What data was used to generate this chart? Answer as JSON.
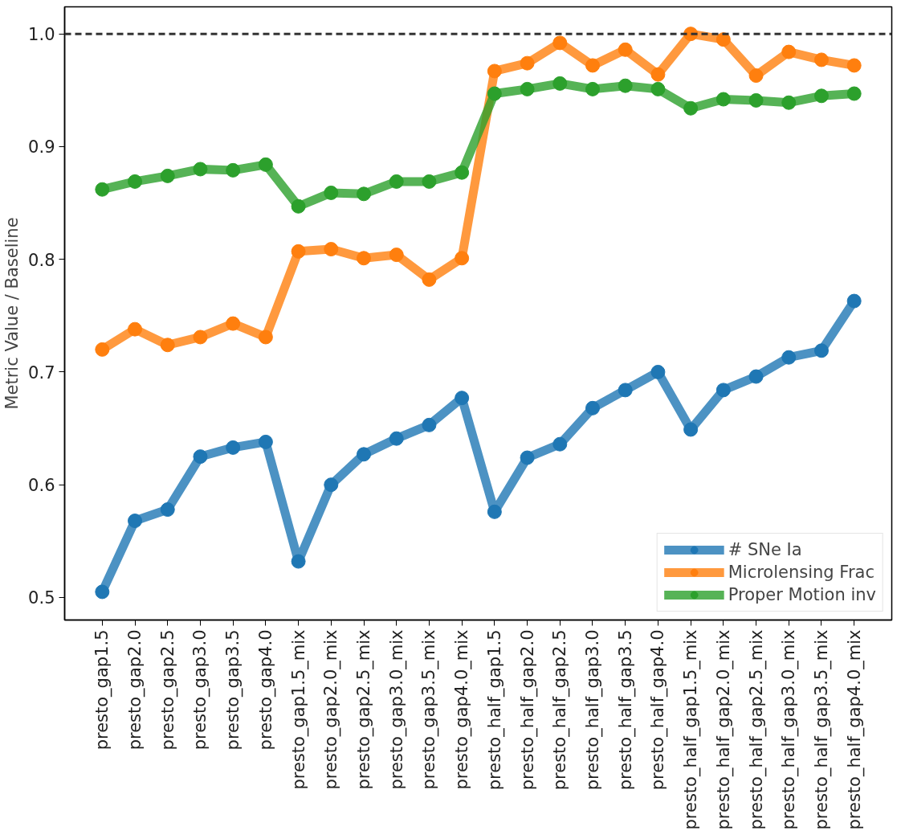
{
  "chart_data": {
    "type": "line",
    "ylabel": "Metric Value / Baseline",
    "categories": [
      "presto_gap1.5",
      "presto_gap2.0",
      "presto_gap2.5",
      "presto_gap3.0",
      "presto_gap3.5",
      "presto_gap4.0",
      "presto_gap1.5_mix",
      "presto_gap2.0_mix",
      "presto_gap2.5_mix",
      "presto_gap3.0_mix",
      "presto_gap3.5_mix",
      "presto_gap4.0_mix",
      "presto_half_gap1.5",
      "presto_half_gap2.0",
      "presto_half_gap2.5",
      "presto_half_gap3.0",
      "presto_half_gap3.5",
      "presto_half_gap4.0",
      "presto_half_gap1.5_mix",
      "presto_half_gap2.0_mix",
      "presto_half_gap2.5_mix",
      "presto_half_gap3.0_mix",
      "presto_half_gap3.5_mix",
      "presto_half_gap4.0_mix"
    ],
    "series": [
      {
        "name": "# SNe Ia",
        "color": "#1f77b4",
        "values": [
          0.505,
          0.568,
          0.578,
          0.625,
          0.633,
          0.638,
          0.532,
          0.6,
          0.627,
          0.641,
          0.653,
          0.677,
          0.576,
          0.624,
          0.636,
          0.668,
          0.684,
          0.7,
          0.649,
          0.684,
          0.696,
          0.713,
          0.719,
          0.763
        ]
      },
      {
        "name": "Microlensing Frac",
        "color": "#ff7f0e",
        "values": [
          0.72,
          0.738,
          0.724,
          0.731,
          0.743,
          0.731,
          0.807,
          0.809,
          0.801,
          0.804,
          0.782,
          0.801,
          0.967,
          0.974,
          0.992,
          0.972,
          0.986,
          0.964,
          1.0,
          0.995,
          0.963,
          0.984,
          0.977,
          0.972
        ]
      },
      {
        "name": "Proper Motion inv",
        "color": "#2ca02c",
        "values": [
          0.862,
          0.869,
          0.874,
          0.88,
          0.879,
          0.884,
          0.847,
          0.859,
          0.858,
          0.869,
          0.869,
          0.877,
          0.947,
          0.951,
          0.956,
          0.951,
          0.954,
          0.951,
          0.934,
          0.942,
          0.941,
          0.939,
          0.945,
          0.947
        ]
      }
    ],
    "ylim": [
      0.48,
      1.024
    ],
    "yticks": [
      0.5,
      0.6,
      0.7,
      0.8,
      0.9,
      {
        "value": 1,
        "label": "1.0"
      }
    ],
    "ref_lines": [
      {
        "axis": "y",
        "value": 1.0,
        "color": "#333333",
        "line_style": "dashed"
      }
    ],
    "grid": false,
    "legend": "bottom right",
    "marker": "circle",
    "line_style": "solid"
  }
}
